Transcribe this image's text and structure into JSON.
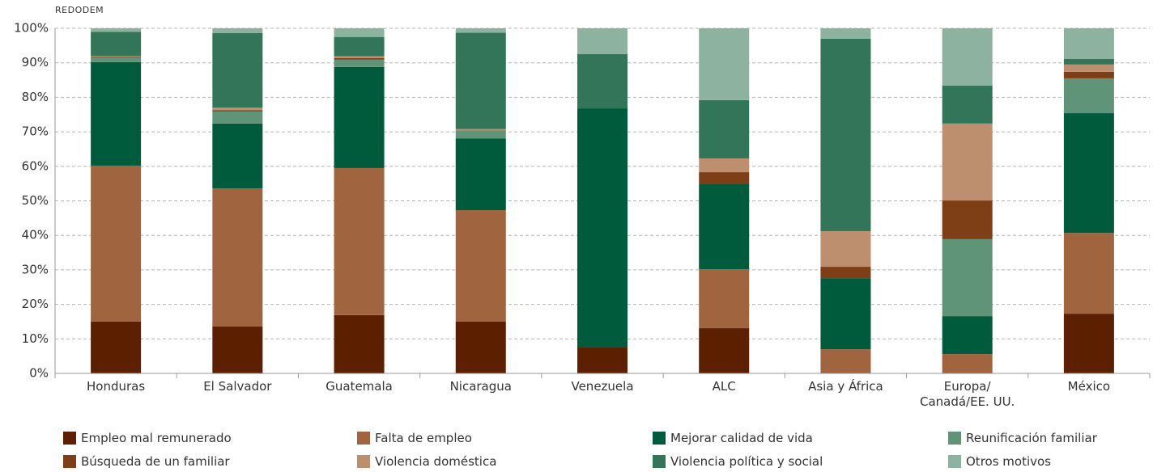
{
  "chart_data": {
    "type": "stacked_bar",
    "source": "REDODEM",
    "categories": [
      "Honduras",
      "El Salvador",
      "Guatemala",
      "Nicaragua",
      "Venezuela",
      "ALC",
      "Asia y África",
      "Europa/ Canadá/EE. UU.",
      "México"
    ],
    "series": [
      {
        "name": "Empleo mal remunerado",
        "color": "#5c2000",
        "values": [
          15,
          13.6,
          16.9,
          15,
          7.7,
          13.1,
          0,
          0,
          17.3
        ]
      },
      {
        "name": "Falta de empleo",
        "color": "#a0653f",
        "values": [
          45.2,
          40,
          42.6,
          32.3,
          0,
          17.1,
          7,
          5.6,
          23.4
        ]
      },
      {
        "name": "Mejorar calidad de vida",
        "color": "#005a3c",
        "values": [
          30,
          18.8,
          29.3,
          20.8,
          69.1,
          24.6,
          20.6,
          11,
          34.7
        ]
      },
      {
        "name": "Reunificación familiar",
        "color": "#5f9479",
        "values": [
          1.4,
          3.5,
          2.1,
          2.2,
          0,
          0,
          0,
          22.3,
          10.1
        ]
      },
      {
        "name": "Búsqueda de un familiar",
        "color": "#7e3f17",
        "values": [
          0.2,
          0.4,
          0.5,
          0.1,
          0,
          3.5,
          3.3,
          11.2,
          1.9
        ]
      },
      {
        "name": "Violencia doméstica",
        "color": "#be8f6e",
        "values": [
          0.2,
          0.7,
          0.5,
          0.4,
          0,
          4,
          10.3,
          22.3,
          2.1
        ]
      },
      {
        "name": "Violencia política y social",
        "color": "#327559",
        "values": [
          7,
          21.6,
          5.6,
          27.9,
          15.7,
          16.9,
          55.8,
          11,
          1.6
        ]
      },
      {
        "name": "Otros motivos",
        "color": "#8db3a0",
        "values": [
          1,
          1.4,
          2.5,
          1.3,
          7.5,
          20.8,
          3,
          16.6,
          8.9
        ]
      }
    ],
    "ylim": [
      0,
      100
    ],
    "yticks": [
      {
        "value": 0,
        "label": "0%"
      },
      {
        "value": 10,
        "label": "10%"
      },
      {
        "value": 20,
        "label": "20%"
      },
      {
        "value": 30,
        "label": "30%"
      },
      {
        "value": 40,
        "label": "40%"
      },
      {
        "value": 50,
        "label": "50%"
      },
      {
        "value": 60,
        "label": "60%"
      },
      {
        "value": 70,
        "label": "70%"
      },
      {
        "value": 80,
        "label": "80%"
      },
      {
        "value": 90,
        "label": "90%"
      },
      {
        "value": 100,
        "label": "100%"
      }
    ],
    "grid": true
  }
}
